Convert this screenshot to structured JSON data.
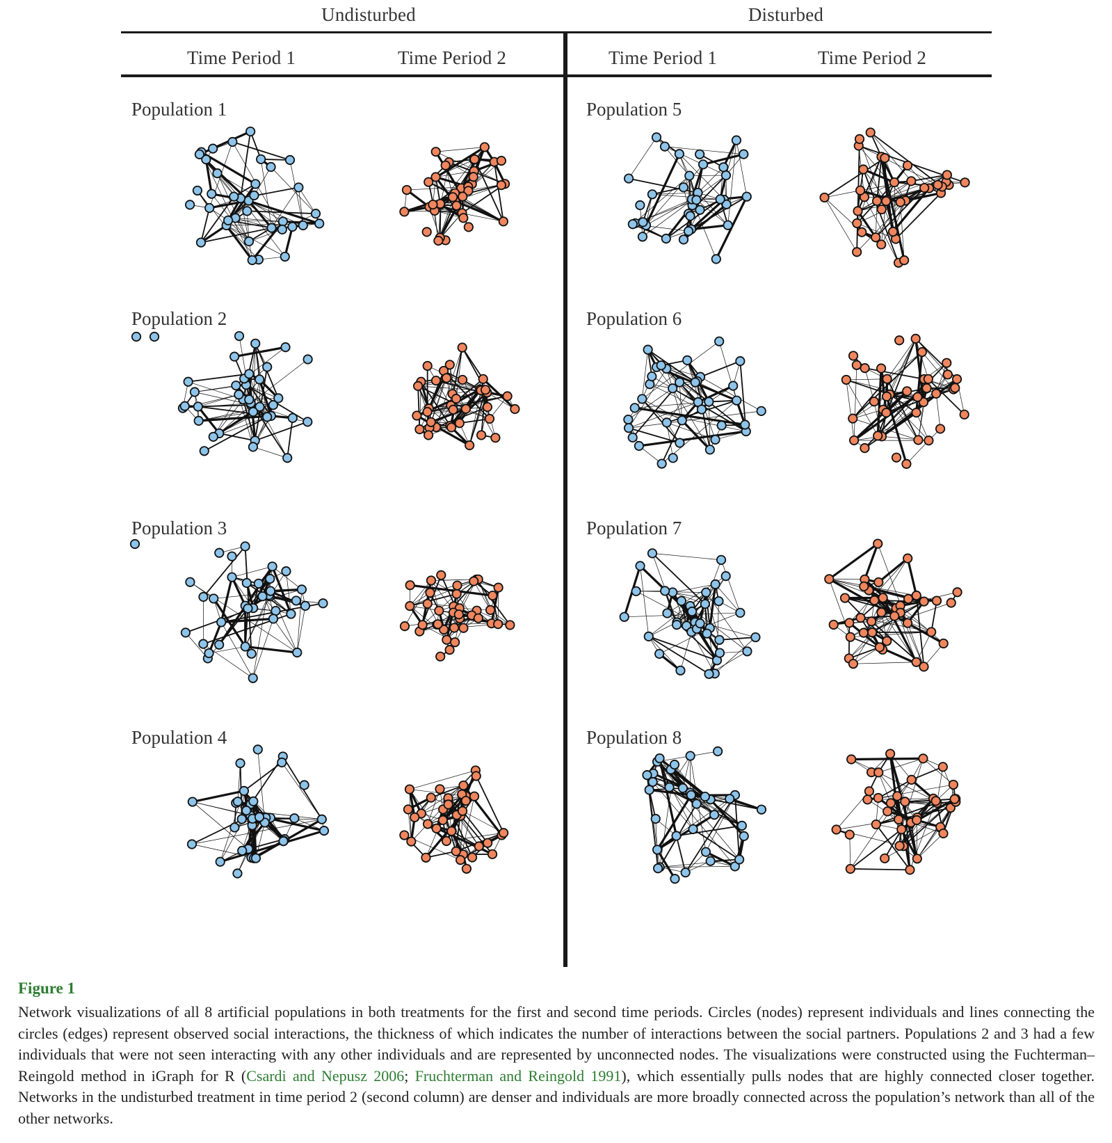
{
  "header": {
    "group_left": "Undisturbed",
    "group_right": "Disturbed",
    "periods": [
      "Time Period 1",
      "Time Period 2",
      "Time Period 1",
      "Time Period 2"
    ]
  },
  "populations": {
    "left": [
      "Population 1",
      "Population 2",
      "Population 3",
      "Population 4"
    ],
    "right": [
      "Population 5",
      "Population 6",
      "Population 7",
      "Population 8"
    ]
  },
  "colors": {
    "undisturbed_tp1_node": "#8ec4ea",
    "node_orange": "#f0865e",
    "node_blue": "#8ec4ea",
    "edge": "#111111",
    "figure_label": "#2e7d32"
  },
  "figure": {
    "label": "Figure 1",
    "caption_part1": "Network visualizations of all 8 artificial populations in both treatments for the first and second time periods. Circles (nodes) represent individuals and lines connecting the circles (edges) represent observed social interactions, the thickness of which indicates the number of interactions between the social partners. Populations 2 and 3 had a few individuals that were not seen interacting with any other individuals and are represented by unconnected nodes. The visualizations were constructed using the Fuchterman–Reingold method in iGraph for R (",
    "ref1": "Csardi and Nepusz 2006",
    "sep": "; ",
    "ref2": "Fruchterman and Reingold 1991",
    "caption_part2": "), which essentially pulls nodes that are highly connected closer together. Networks in the undisturbed treatment in time period 2 (second column) are denser and individuals are more broadly connected across the population’s network than all of the other networks."
  }
}
